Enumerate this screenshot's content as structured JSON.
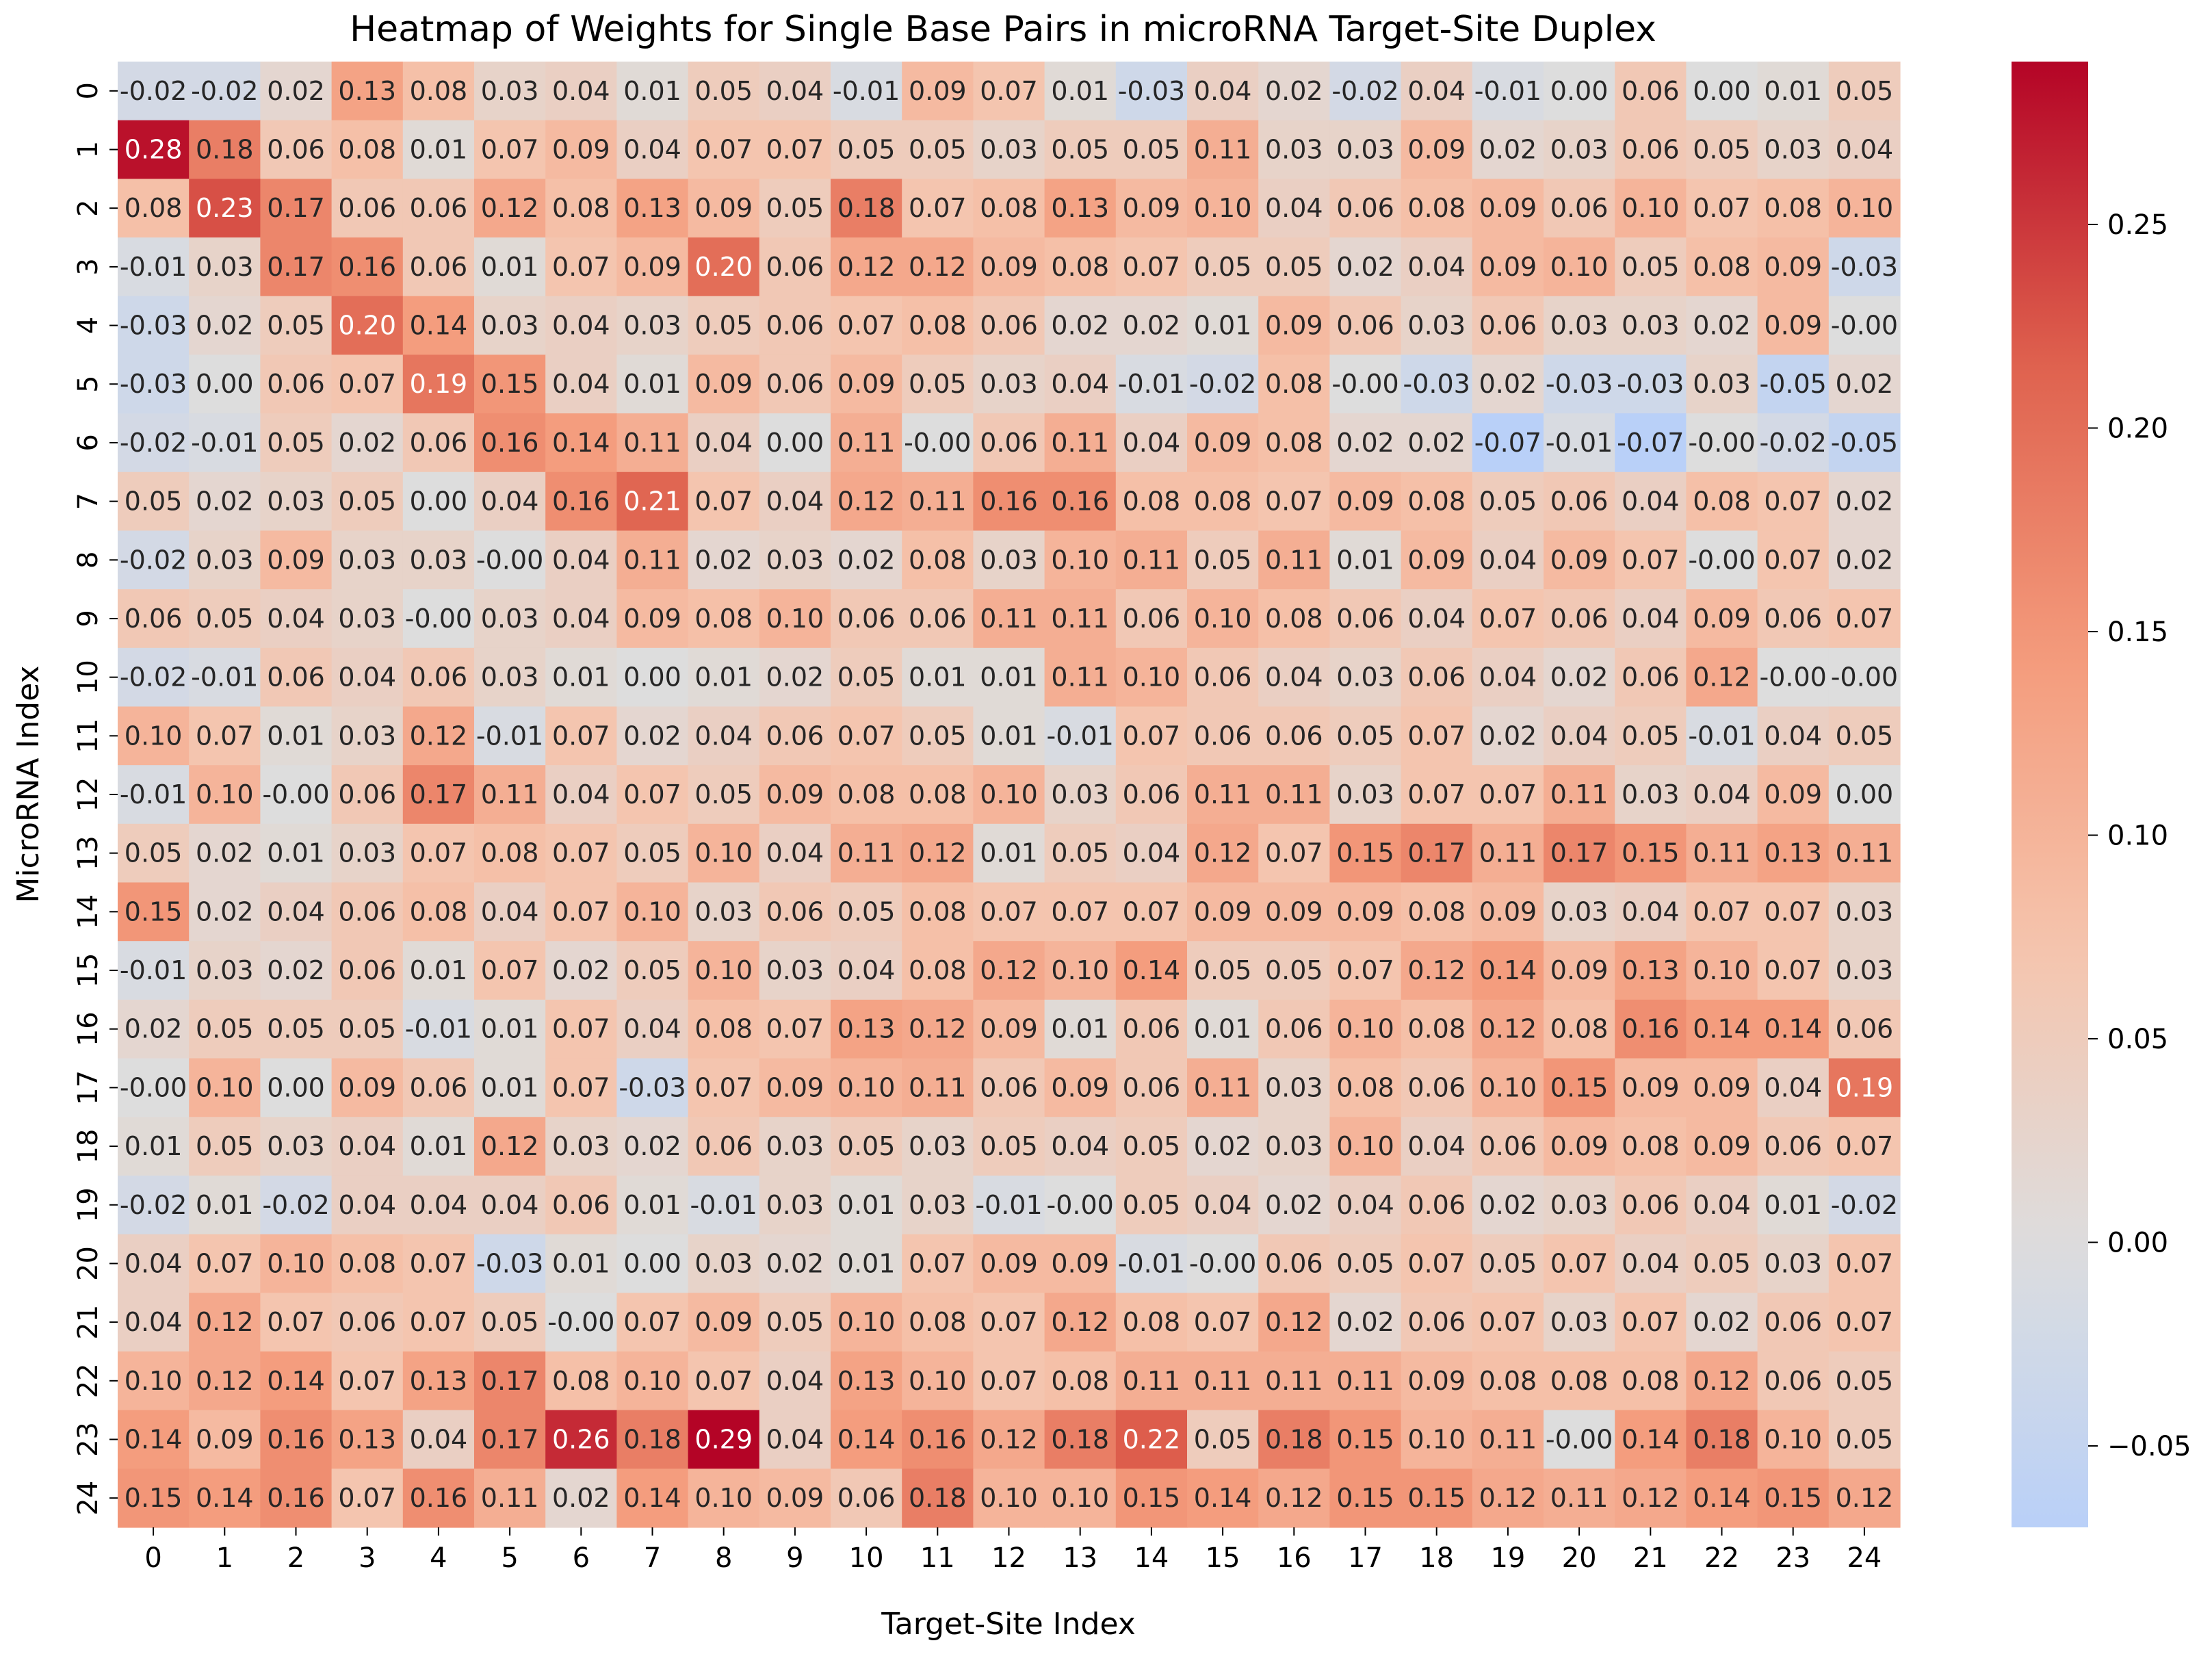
{
  "chart_data": {
    "type": "heatmap",
    "title": "Heatmap of Weights for Single Base Pairs in microRNA Target-Site Duplex",
    "xlabel": "Target-Site Index",
    "ylabel": "MicroRNA Index",
    "x": [
      "0",
      "1",
      "2",
      "3",
      "4",
      "5",
      "6",
      "7",
      "8",
      "9",
      "10",
      "11",
      "12",
      "13",
      "14",
      "15",
      "16",
      "17",
      "18",
      "19",
      "20",
      "21",
      "22",
      "23",
      "24"
    ],
    "y": [
      "0",
      "1",
      "2",
      "3",
      "4",
      "5",
      "6",
      "7",
      "8",
      "9",
      "10",
      "11",
      "12",
      "13",
      "14",
      "15",
      "16",
      "17",
      "18",
      "19",
      "20",
      "21",
      "22",
      "23",
      "24"
    ],
    "colormap": "coolwarm",
    "center": 0,
    "vmin": -0.07,
    "vmax": 0.29,
    "colorbar_ticks": [
      -0.05,
      0.0,
      0.05,
      0.1,
      0.15,
      0.2,
      0.25
    ],
    "colorbar_tick_labels": [
      "−0.05",
      "0.00",
      "0.05",
      "0.10",
      "0.15",
      "0.20",
      "0.25"
    ],
    "values": [
      [
        -0.02,
        -0.02,
        0.02,
        0.13,
        0.08,
        0.03,
        0.04,
        0.01,
        0.05,
        0.04,
        -0.01,
        0.09,
        0.07,
        0.01,
        -0.03,
        0.04,
        0.02,
        -0.02,
        0.04,
        -0.01,
        0.0,
        0.06,
        0.0,
        0.01,
        0.05
      ],
      [
        0.28,
        0.18,
        0.06,
        0.08,
        0.01,
        0.07,
        0.09,
        0.04,
        0.07,
        0.07,
        0.05,
        0.05,
        0.03,
        0.05,
        0.05,
        0.11,
        0.03,
        0.03,
        0.09,
        0.02,
        0.03,
        0.06,
        0.05,
        0.03,
        0.04
      ],
      [
        0.08,
        0.23,
        0.17,
        0.06,
        0.06,
        0.12,
        0.08,
        0.13,
        0.09,
        0.05,
        0.18,
        0.07,
        0.08,
        0.13,
        0.09,
        0.1,
        0.04,
        0.06,
        0.08,
        0.09,
        0.06,
        0.1,
        0.07,
        0.08,
        0.1
      ],
      [
        -0.01,
        0.03,
        0.17,
        0.16,
        0.06,
        0.01,
        0.07,
        0.09,
        0.2,
        0.06,
        0.12,
        0.12,
        0.09,
        0.08,
        0.07,
        0.05,
        0.05,
        0.02,
        0.04,
        0.09,
        0.1,
        0.05,
        0.08,
        0.09,
        -0.03
      ],
      [
        -0.03,
        0.02,
        0.05,
        0.2,
        0.14,
        0.03,
        0.04,
        0.03,
        0.05,
        0.06,
        0.07,
        0.08,
        0.06,
        0.02,
        0.02,
        0.01,
        0.09,
        0.06,
        0.03,
        0.06,
        0.03,
        0.03,
        0.02,
        0.09,
        -0.0
      ],
      [
        -0.03,
        0.0,
        0.06,
        0.07,
        0.19,
        0.15,
        0.04,
        0.01,
        0.09,
        0.06,
        0.09,
        0.05,
        0.03,
        0.04,
        -0.01,
        -0.02,
        0.08,
        -0.0,
        -0.03,
        0.02,
        -0.03,
        -0.03,
        0.03,
        -0.05,
        0.02
      ],
      [
        -0.02,
        -0.01,
        0.05,
        0.02,
        0.06,
        0.16,
        0.14,
        0.11,
        0.04,
        0.0,
        0.11,
        -0.0,
        0.06,
        0.11,
        0.04,
        0.09,
        0.08,
        0.02,
        0.02,
        -0.07,
        -0.01,
        -0.07,
        -0.0,
        -0.02,
        -0.05
      ],
      [
        0.05,
        0.02,
        0.03,
        0.05,
        0.0,
        0.04,
        0.16,
        0.21,
        0.07,
        0.04,
        0.12,
        0.11,
        0.16,
        0.16,
        0.08,
        0.08,
        0.07,
        0.09,
        0.08,
        0.05,
        0.06,
        0.04,
        0.08,
        0.07,
        0.02
      ],
      [
        -0.02,
        0.03,
        0.09,
        0.03,
        0.03,
        -0.0,
        0.04,
        0.11,
        0.02,
        0.03,
        0.02,
        0.08,
        0.03,
        0.1,
        0.11,
        0.05,
        0.11,
        0.01,
        0.09,
        0.04,
        0.09,
        0.07,
        -0.0,
        0.07,
        0.02
      ],
      [
        0.06,
        0.05,
        0.04,
        0.03,
        -0.0,
        0.03,
        0.04,
        0.09,
        0.08,
        0.1,
        0.06,
        0.06,
        0.11,
        0.11,
        0.06,
        0.1,
        0.08,
        0.06,
        0.04,
        0.07,
        0.06,
        0.04,
        0.09,
        0.06,
        0.07
      ],
      [
        -0.02,
        -0.01,
        0.06,
        0.04,
        0.06,
        0.03,
        0.01,
        0.0,
        0.01,
        0.02,
        0.05,
        0.01,
        0.01,
        0.11,
        0.1,
        0.06,
        0.04,
        0.03,
        0.06,
        0.04,
        0.02,
        0.06,
        0.12,
        -0.0,
        -0.0
      ],
      [
        0.1,
        0.07,
        0.01,
        0.03,
        0.12,
        -0.01,
        0.07,
        0.02,
        0.04,
        0.06,
        0.07,
        0.05,
        0.01,
        -0.01,
        0.07,
        0.06,
        0.06,
        0.05,
        0.07,
        0.02,
        0.04,
        0.05,
        -0.01,
        0.04,
        0.05
      ],
      [
        -0.01,
        0.1,
        -0.0,
        0.06,
        0.17,
        0.11,
        0.04,
        0.07,
        0.05,
        0.09,
        0.08,
        0.08,
        0.1,
        0.03,
        0.06,
        0.11,
        0.11,
        0.03,
        0.07,
        0.07,
        0.11,
        0.03,
        0.04,
        0.09,
        0.0
      ],
      [
        0.05,
        0.02,
        0.01,
        0.03,
        0.07,
        0.08,
        0.07,
        0.05,
        0.1,
        0.04,
        0.11,
        0.12,
        0.01,
        0.05,
        0.04,
        0.12,
        0.07,
        0.15,
        0.17,
        0.11,
        0.17,
        0.15,
        0.11,
        0.13,
        0.11
      ],
      [
        0.15,
        0.02,
        0.04,
        0.06,
        0.08,
        0.04,
        0.07,
        0.1,
        0.03,
        0.06,
        0.05,
        0.08,
        0.07,
        0.07,
        0.07,
        0.09,
        0.09,
        0.09,
        0.08,
        0.09,
        0.03,
        0.04,
        0.07,
        0.07,
        0.03
      ],
      [
        -0.01,
        0.03,
        0.02,
        0.06,
        0.01,
        0.07,
        0.02,
        0.05,
        0.1,
        0.03,
        0.04,
        0.08,
        0.12,
        0.1,
        0.14,
        0.05,
        0.05,
        0.07,
        0.12,
        0.14,
        0.09,
        0.13,
        0.1,
        0.07,
        0.03
      ],
      [
        0.02,
        0.05,
        0.05,
        0.05,
        -0.01,
        0.01,
        0.07,
        0.04,
        0.08,
        0.07,
        0.13,
        0.12,
        0.09,
        0.01,
        0.06,
        0.01,
        0.06,
        0.1,
        0.08,
        0.12,
        0.08,
        0.16,
        0.14,
        0.14,
        0.06
      ],
      [
        -0.0,
        0.1,
        0.0,
        0.09,
        0.06,
        0.01,
        0.07,
        -0.03,
        0.07,
        0.09,
        0.1,
        0.11,
        0.06,
        0.09,
        0.06,
        0.11,
        0.03,
        0.08,
        0.06,
        0.1,
        0.15,
        0.09,
        0.09,
        0.04,
        0.19
      ],
      [
        0.01,
        0.05,
        0.03,
        0.04,
        0.01,
        0.12,
        0.03,
        0.02,
        0.06,
        0.03,
        0.05,
        0.03,
        0.05,
        0.04,
        0.05,
        0.02,
        0.03,
        0.1,
        0.04,
        0.06,
        0.09,
        0.08,
        0.09,
        0.06,
        0.07
      ],
      [
        -0.02,
        0.01,
        -0.02,
        0.04,
        0.04,
        0.04,
        0.06,
        0.01,
        -0.01,
        0.03,
        0.01,
        0.03,
        -0.01,
        -0.0,
        0.05,
        0.04,
        0.02,
        0.04,
        0.06,
        0.02,
        0.03,
        0.06,
        0.04,
        0.01,
        -0.02
      ],
      [
        0.04,
        0.07,
        0.1,
        0.08,
        0.07,
        -0.03,
        0.01,
        0.0,
        0.03,
        0.02,
        0.01,
        0.07,
        0.09,
        0.09,
        -0.01,
        -0.0,
        0.06,
        0.05,
        0.07,
        0.05,
        0.07,
        0.04,
        0.05,
        0.03,
        0.07
      ],
      [
        0.04,
        0.12,
        0.07,
        0.06,
        0.07,
        0.05,
        -0.0,
        0.07,
        0.09,
        0.05,
        0.1,
        0.08,
        0.07,
        0.12,
        0.08,
        0.07,
        0.12,
        0.02,
        0.06,
        0.07,
        0.03,
        0.07,
        0.02,
        0.06,
        0.07
      ],
      [
        0.1,
        0.12,
        0.14,
        0.07,
        0.13,
        0.17,
        0.08,
        0.1,
        0.07,
        0.04,
        0.13,
        0.1,
        0.07,
        0.08,
        0.11,
        0.11,
        0.11,
        0.11,
        0.09,
        0.08,
        0.08,
        0.08,
        0.12,
        0.06,
        0.05
      ],
      [
        0.14,
        0.09,
        0.16,
        0.13,
        0.04,
        0.17,
        0.26,
        0.18,
        0.29,
        0.04,
        0.14,
        0.16,
        0.12,
        0.18,
        0.22,
        0.05,
        0.18,
        0.15,
        0.1,
        0.11,
        -0.0,
        0.14,
        0.18,
        0.1,
        0.05
      ],
      [
        0.15,
        0.14,
        0.16,
        0.07,
        0.16,
        0.11,
        0.02,
        0.14,
        0.1,
        0.09,
        0.06,
        0.18,
        0.1,
        0.1,
        0.15,
        0.14,
        0.12,
        0.15,
        0.15,
        0.12,
        0.11,
        0.12,
        0.14,
        0.15,
        0.12
      ]
    ]
  }
}
